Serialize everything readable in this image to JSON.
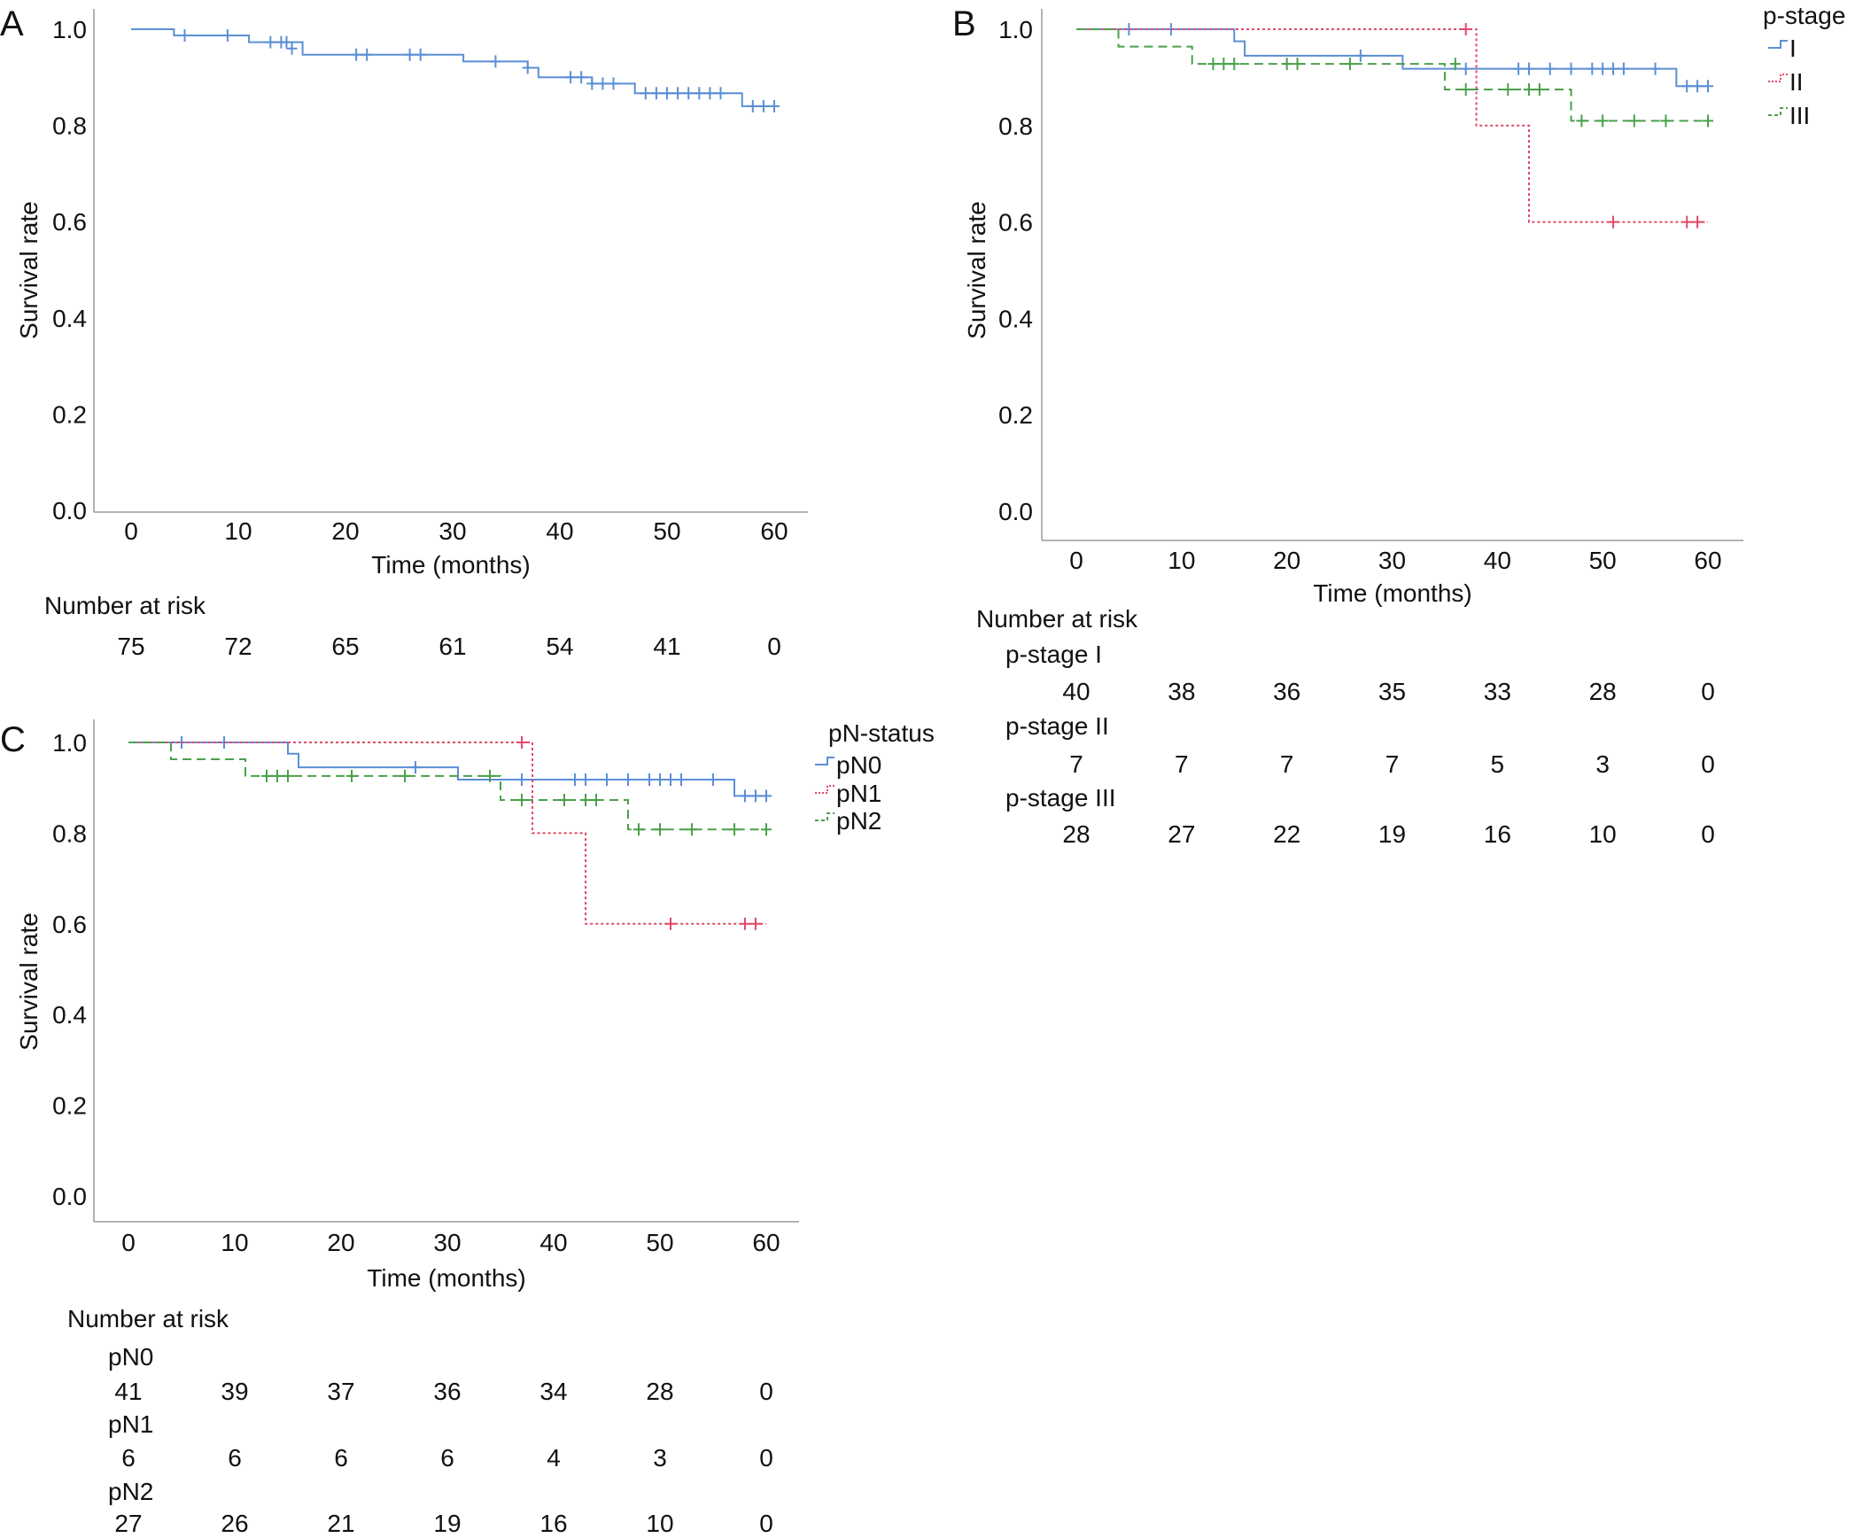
{
  "chart_data": [
    {
      "panel": "A",
      "type": "line",
      "xlabel": "Time (months)",
      "ylabel": "Survival rate",
      "xlim": [
        0,
        60
      ],
      "ylim": [
        0,
        1.0
      ],
      "x_ticks": [
        0,
        10,
        20,
        30,
        40,
        50,
        60
      ],
      "y_ticks": [
        0.0,
        0.2,
        0.4,
        0.6,
        0.8,
        1.0
      ],
      "y_tick_labels": [
        "0.0",
        "0.2",
        "0.4",
        "0.6",
        "0.8",
        "1.0"
      ],
      "legend_title": "",
      "series": [
        {
          "name": "",
          "color": "#5b8fd4",
          "dash": "solid",
          "steps": [
            [
              0,
              1.0
            ],
            [
              4,
              0.987
            ],
            [
              11,
              0.973
            ],
            [
              16,
              0.947
            ],
            [
              31,
              0.933
            ],
            [
              37,
              0.92
            ],
            [
              38,
              0.9
            ],
            [
              43,
              0.887
            ],
            [
              47,
              0.867
            ],
            [
              57,
              0.84
            ],
            [
              60,
              0.84
            ]
          ],
          "censors": [
            [
              5,
              0.987
            ],
            [
              9,
              0.987
            ],
            [
              13,
              0.973
            ],
            [
              14,
              0.973
            ],
            [
              14.5,
              0.973
            ],
            [
              15,
              0.96
            ],
            [
              21,
              0.947
            ],
            [
              22,
              0.947
            ],
            [
              26,
              0.947
            ],
            [
              27,
              0.947
            ],
            [
              34,
              0.933
            ],
            [
              37,
              0.92
            ],
            [
              41,
              0.9
            ],
            [
              42,
              0.9
            ],
            [
              43,
              0.887
            ],
            [
              44,
              0.887
            ],
            [
              45,
              0.887
            ],
            [
              48,
              0.867
            ],
            [
              49,
              0.867
            ],
            [
              50,
              0.867
            ],
            [
              51,
              0.867
            ],
            [
              52,
              0.867
            ],
            [
              53,
              0.867
            ],
            [
              54,
              0.867
            ],
            [
              55,
              0.867
            ],
            [
              58,
              0.84
            ],
            [
              59,
              0.84
            ],
            [
              60,
              0.84
            ]
          ]
        }
      ],
      "risk_table": {
        "title": "Number at risk",
        "rows": [
          {
            "label": "",
            "values": [
              "75",
              "72",
              "65",
              "61",
              "54",
              "41",
              "0"
            ]
          }
        ]
      }
    },
    {
      "panel": "B",
      "type": "line",
      "xlabel": "Time (months)",
      "ylabel": "Survival rate",
      "xlim": [
        0,
        60
      ],
      "ylim": [
        0,
        1.0
      ],
      "x_ticks": [
        0,
        10,
        20,
        30,
        40,
        50,
        60
      ],
      "y_ticks": [
        0.0,
        0.2,
        0.4,
        0.6,
        0.8,
        1.0
      ],
      "y_tick_labels": [
        "0.0",
        "0.2",
        "0.4",
        "0.6",
        "0.8",
        "1.0"
      ],
      "legend_title": "p-stage",
      "series": [
        {
          "name": "I",
          "color": "#5b8fd4",
          "dash": "solid",
          "steps": [
            [
              0,
              1.0
            ],
            [
              15,
              0.975
            ],
            [
              16,
              0.945
            ],
            [
              31,
              0.918
            ],
            [
              57,
              0.882
            ],
            [
              60,
              0.882
            ]
          ],
          "censors": [
            [
              5,
              1.0
            ],
            [
              9,
              1.0
            ],
            [
              27,
              0.945
            ],
            [
              37,
              0.918
            ],
            [
              42,
              0.918
            ],
            [
              43,
              0.918
            ],
            [
              45,
              0.918
            ],
            [
              47,
              0.918
            ],
            [
              49,
              0.918
            ],
            [
              50,
              0.918
            ],
            [
              51,
              0.918
            ],
            [
              52,
              0.918
            ],
            [
              55,
              0.918
            ],
            [
              58,
              0.882
            ],
            [
              59,
              0.882
            ],
            [
              60,
              0.882
            ]
          ]
        },
        {
          "name": "II",
          "color": "#e04a68",
          "dash": "dotted",
          "steps": [
            [
              0,
              1.0
            ],
            [
              38,
              0.8
            ],
            [
              43,
              0.6
            ],
            [
              60,
              0.6
            ]
          ],
          "censors": [
            [
              37,
              1.0
            ],
            [
              51,
              0.6
            ],
            [
              58,
              0.6
            ],
            [
              59,
              0.6
            ]
          ]
        },
        {
          "name": "III",
          "color": "#4aa04a",
          "dash": "dashed",
          "steps": [
            [
              0,
              1.0
            ],
            [
              4,
              0.964
            ],
            [
              11,
              0.928
            ],
            [
              35,
              0.875
            ],
            [
              47,
              0.81
            ],
            [
              60,
              0.81
            ]
          ],
          "censors": [
            [
              13,
              0.928
            ],
            [
              14,
              0.928
            ],
            [
              15,
              0.928
            ],
            [
              20,
              0.928
            ],
            [
              21,
              0.928
            ],
            [
              26,
              0.928
            ],
            [
              36,
              0.928
            ],
            [
              37,
              0.875
            ],
            [
              41,
              0.875
            ],
            [
              43,
              0.875
            ],
            [
              44,
              0.875
            ],
            [
              48,
              0.81
            ],
            [
              50,
              0.81
            ],
            [
              53,
              0.81
            ],
            [
              56,
              0.81
            ],
            [
              60,
              0.81
            ]
          ]
        }
      ],
      "risk_table": {
        "title": "Number at risk",
        "rows": [
          {
            "label": "p-stage I",
            "values": [
              "40",
              "38",
              "36",
              "35",
              "33",
              "28",
              "0"
            ]
          },
          {
            "label": "p-stage II",
            "values": [
              "7",
              "7",
              "7",
              "7",
              "5",
              "3",
              "0"
            ]
          },
          {
            "label": "p-stage III",
            "values": [
              "28",
              "27",
              "22",
              "19",
              "16",
              "10",
              "0"
            ]
          }
        ]
      }
    },
    {
      "panel": "C",
      "type": "line",
      "xlabel": "Time (months)",
      "ylabel": "Survival rate",
      "xlim": [
        0,
        60
      ],
      "ylim": [
        0,
        1.0
      ],
      "x_ticks": [
        0,
        10,
        20,
        30,
        40,
        50,
        60
      ],
      "y_ticks": [
        0.0,
        0.2,
        0.4,
        0.6,
        0.8,
        1.0
      ],
      "y_tick_labels": [
        "0.0",
        "0.2",
        "0.4",
        "0.6",
        "0.8",
        "1.0"
      ],
      "legend_title": "pN-status",
      "series": [
        {
          "name": "pN0",
          "color": "#5b8fd4",
          "dash": "solid",
          "steps": [
            [
              0,
              1.0
            ],
            [
              15,
              0.975
            ],
            [
              16,
              0.945
            ],
            [
              31,
              0.918
            ],
            [
              57,
              0.882
            ],
            [
              60,
              0.882
            ]
          ],
          "censors": [
            [
              5,
              1.0
            ],
            [
              9,
              1.0
            ],
            [
              27,
              0.945
            ],
            [
              37,
              0.918
            ],
            [
              42,
              0.918
            ],
            [
              43,
              0.918
            ],
            [
              45,
              0.918
            ],
            [
              47,
              0.918
            ],
            [
              49,
              0.918
            ],
            [
              50,
              0.918
            ],
            [
              51,
              0.918
            ],
            [
              52,
              0.918
            ],
            [
              55,
              0.918
            ],
            [
              58,
              0.882
            ],
            [
              59,
              0.882
            ],
            [
              60,
              0.882
            ]
          ]
        },
        {
          "name": "pN1",
          "color": "#e04a68",
          "dash": "dotted",
          "steps": [
            [
              0,
              1.0
            ],
            [
              38,
              0.8
            ],
            [
              43,
              0.6
            ],
            [
              60,
              0.6
            ]
          ],
          "censors": [
            [
              37,
              1.0
            ],
            [
              51,
              0.6
            ],
            [
              58,
              0.6
            ],
            [
              59,
              0.6
            ]
          ]
        },
        {
          "name": "pN2",
          "color": "#4aa04a",
          "dash": "dashed",
          "steps": [
            [
              0,
              1.0
            ],
            [
              4,
              0.963
            ],
            [
              11,
              0.926
            ],
            [
              35,
              0.873
            ],
            [
              47,
              0.808
            ],
            [
              60,
              0.808
            ]
          ],
          "censors": [
            [
              13,
              0.926
            ],
            [
              14,
              0.926
            ],
            [
              15,
              0.926
            ],
            [
              21,
              0.926
            ],
            [
              26,
              0.926
            ],
            [
              34,
              0.926
            ],
            [
              37,
              0.873
            ],
            [
              41,
              0.873
            ],
            [
              43,
              0.873
            ],
            [
              44,
              0.873
            ],
            [
              48,
              0.808
            ],
            [
              50,
              0.808
            ],
            [
              53,
              0.808
            ],
            [
              57,
              0.808
            ],
            [
              60,
              0.808
            ]
          ]
        }
      ],
      "risk_table": {
        "title": "Number at risk",
        "rows": [
          {
            "label": "pN0",
            "values": [
              "41",
              "39",
              "37",
              "36",
              "34",
              "28",
              "0"
            ]
          },
          {
            "label": "pN1",
            "values": [
              "6",
              "6",
              "6",
              "6",
              "4",
              "3",
              "0"
            ]
          },
          {
            "label": "pN2",
            "values": [
              "27",
              "26",
              "21",
              "19",
              "16",
              "10",
              "0"
            ]
          }
        ]
      }
    }
  ]
}
